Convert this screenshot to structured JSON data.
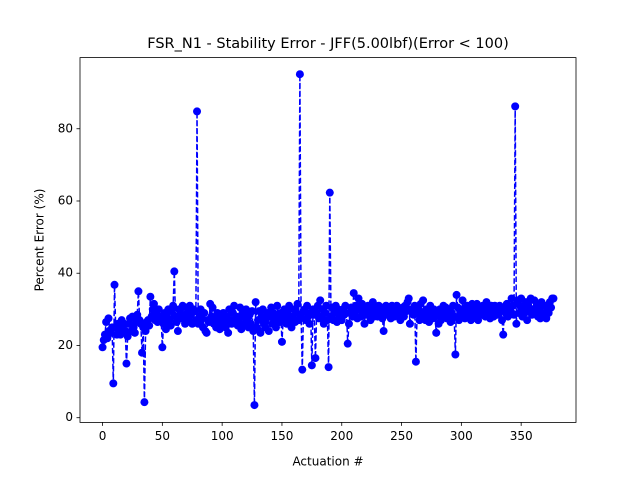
{
  "chart_data": {
    "type": "line",
    "title": "FSR_N1 - Stability Error - JFF(5.00lbf)(Error < 100)",
    "x_label": "Actuation #",
    "y_label": "Percent Error (%)",
    "xlim": [
      -18.85,
      395.85
    ],
    "ylim": [
      -1.3,
      99.7
    ],
    "xticks": [
      0,
      50,
      100,
      150,
      200,
      250,
      300,
      350
    ],
    "yticks": [
      0,
      20,
      40,
      60,
      80
    ],
    "grid": false,
    "series": [
      {
        "color": "#0000ff",
        "x": [
          0,
          1,
          2,
          3,
          4,
          5,
          6,
          7,
          8,
          9,
          10,
          11,
          12,
          13,
          14,
          15,
          16,
          17,
          18,
          19,
          20,
          21,
          22,
          23,
          24,
          25,
          26,
          27,
          28,
          29,
          30,
          31,
          32,
          33,
          34,
          35,
          36,
          37,
          38,
          39,
          40,
          41,
          42,
          43,
          44,
          45,
          46,
          47,
          48,
          49,
          50,
          51,
          52,
          53,
          54,
          55,
          56,
          57,
          58,
          59,
          60,
          61,
          62,
          63,
          64,
          65,
          66,
          67,
          68,
          69,
          70,
          71,
          72,
          73,
          74,
          75,
          76,
          77,
          78,
          79,
          80,
          81,
          82,
          83,
          84,
          85,
          86,
          87,
          88,
          89,
          90,
          91,
          92,
          93,
          94,
          95,
          96,
          97,
          98,
          99,
          100,
          101,
          102,
          103,
          104,
          105,
          106,
          107,
          108,
          109,
          110,
          111,
          112,
          113,
          114,
          115,
          116,
          117,
          118,
          119,
          120,
          121,
          122,
          123,
          124,
          125,
          126,
          127,
          128,
          129,
          130,
          131,
          132,
          133,
          134,
          135,
          136,
          137,
          138,
          139,
          140,
          141,
          142,
          143,
          144,
          145,
          146,
          147,
          148,
          149,
          150,
          151,
          152,
          153,
          154,
          155,
          156,
          157,
          158,
          159,
          160,
          161,
          162,
          163,
          164,
          165,
          166,
          167,
          168,
          169,
          170,
          171,
          172,
          173,
          174,
          175,
          176,
          177,
          178,
          179,
          180,
          181,
          182,
          183,
          184,
          185,
          186,
          187,
          188,
          189,
          190,
          191,
          192,
          193,
          194,
          195,
          196,
          197,
          198,
          199,
          200,
          201,
          202,
          203,
          204,
          205,
          206,
          207,
          208,
          209,
          210,
          211,
          212,
          213,
          214,
          215,
          216,
          217,
          218,
          219,
          220,
          221,
          222,
          223,
          224,
          225,
          226,
          227,
          228,
          229,
          230,
          231,
          232,
          233,
          234,
          235,
          236,
          237,
          238,
          239,
          240,
          241,
          242,
          243,
          244,
          245,
          246,
          247,
          248,
          249,
          250,
          251,
          252,
          253,
          254,
          255,
          256,
          257,
          258,
          259,
          260,
          261,
          262,
          263,
          264,
          265,
          266,
          267,
          268,
          269,
          270,
          271,
          272,
          273,
          274,
          275,
          276,
          277,
          278,
          279,
          280,
          281,
          282,
          283,
          284,
          285,
          286,
          287,
          288,
          289,
          290,
          291,
          292,
          293,
          294,
          295,
          296,
          297,
          298,
          299,
          300,
          301,
          302,
          303,
          304,
          305,
          306,
          307,
          308,
          309,
          310,
          311,
          312,
          313,
          314,
          315,
          316,
          317,
          318,
          319,
          320,
          321,
          322,
          323,
          324,
          325,
          326,
          327,
          328,
          329,
          330,
          331,
          332,
          333,
          334,
          335,
          336,
          337,
          338,
          339,
          340,
          341,
          342,
          343,
          344,
          345,
          346,
          347,
          348,
          349,
          350,
          351,
          352,
          353,
          354,
          355,
          356,
          357,
          358,
          359,
          360,
          361,
          362,
          363,
          364,
          365,
          366,
          367,
          368,
          369,
          370,
          371,
          372,
          373,
          374,
          375,
          376,
          377
        ],
        "values": [
          19.5,
          21.5,
          23,
          26.5,
          22,
          27.5,
          24,
          23.5,
          25,
          9.5,
          36.8,
          25,
          23,
          26,
          24.5,
          23,
          27,
          25,
          26,
          24,
          15,
          22.5,
          26,
          27.5,
          24,
          28,
          25,
          23.5,
          26.5,
          28.5,
          35,
          27,
          26,
          18,
          25,
          4.3,
          24,
          26.5,
          27,
          25.5,
          33.5,
          28,
          30,
          31.5,
          27,
          29,
          26.5,
          30,
          28,
          27.5,
          19.5,
          26,
          29,
          24.5,
          28,
          30,
          27,
          25.5,
          29.5,
          31,
          40.5,
          28,
          26.5,
          24,
          30,
          29,
          27.5,
          31,
          28,
          26,
          30.5,
          29,
          27,
          31,
          28.5,
          26,
          30,
          29.5,
          27,
          84.8,
          26,
          28,
          30,
          27.5,
          25,
          29,
          24,
          23.5,
          27,
          26.5,
          31.5,
          28,
          30.5,
          26,
          27,
          25,
          29,
          28,
          24.5,
          26,
          27.5,
          29,
          26.5,
          25,
          28,
          23.5,
          30,
          27,
          26,
          29,
          31,
          26.5,
          28,
          25.5,
          27,
          30.5,
          24.5,
          29,
          28,
          26,
          30,
          27.5,
          25,
          28.5,
          26,
          29.5,
          24,
          3.5,
          32,
          25,
          27,
          29.5,
          23.5,
          28,
          30,
          26,
          25,
          27.5,
          29,
          24,
          28,
          30.5,
          26,
          29,
          27.5,
          25,
          31,
          28,
          26.5,
          29,
          21,
          27,
          30,
          28.5,
          26,
          29.5,
          31,
          27,
          25,
          28,
          30,
          26.5,
          29,
          31.5,
          27,
          95.1,
          28,
          13.3,
          29.5,
          30,
          27,
          31,
          28,
          26,
          29,
          14.5,
          30,
          28.5,
          16.5,
          29,
          31,
          27.5,
          32.5,
          28,
          30,
          26,
          29,
          31,
          27,
          14,
          62.3,
          28,
          30.5,
          27,
          29,
          31,
          26.5,
          30,
          28,
          29.5,
          27,
          30,
          28.5,
          31,
          29,
          20.5,
          26,
          29,
          30.5,
          28,
          34.5,
          29,
          31,
          27.5,
          33,
          30,
          28,
          31.5,
          29,
          26,
          30,
          28.5,
          31,
          29,
          27,
          30.5,
          32,
          28,
          29.5,
          30,
          28,
          31,
          29,
          30.5,
          27.5,
          24,
          29,
          31,
          28.5,
          30,
          29,
          27.5,
          31,
          30,
          28,
          29.5,
          31,
          28.5,
          30,
          27,
          29,
          30.5,
          28,
          31,
          29.5,
          32,
          33,
          26,
          30,
          29,
          28.5,
          31,
          15.5,
          29,
          30,
          27,
          31.5,
          28,
          32.5,
          29,
          27,
          30,
          28.5,
          26.5,
          31,
          29,
          27.5,
          30,
          28,
          23.5,
          29.5,
          26,
          30,
          27,
          28.5,
          31,
          29,
          30.5,
          27.5,
          28,
          30,
          26.5,
          29,
          31,
          28,
          17.5,
          34,
          30.5,
          27,
          29,
          28,
          32.5,
          30,
          27.5,
          29,
          31,
          28.5,
          30,
          27,
          31.5,
          29,
          30,
          28,
          31.5,
          27,
          30,
          29,
          28.5,
          31,
          30,
          28,
          32,
          29.5,
          30,
          27.5,
          31,
          29,
          28,
          31,
          30.5,
          28.5,
          29,
          31,
          30,
          27,
          23,
          30.5,
          29,
          31.5,
          28,
          30,
          29,
          33,
          31,
          28.5,
          86.2,
          26,
          32.5,
          29,
          31,
          33,
          28,
          30.5,
          29,
          32,
          27,
          31,
          30,
          33,
          28.5,
          30,
          32.5,
          29,
          31,
          28,
          30.5,
          27.5,
          32,
          29,
          28,
          31,
          27.5,
          30,
          29,
          32,
          30.5,
          33,
          33
        ]
      }
    ]
  }
}
